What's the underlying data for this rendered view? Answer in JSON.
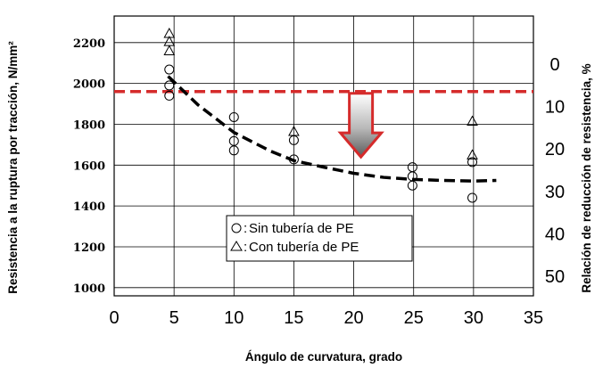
{
  "chart_data": {
    "type": "scatter",
    "title": "",
    "xlabel": "Ángulo de curvatura, grado",
    "ylabel": "Resistencia a la ruptura por tracción, N/mm²",
    "y2label": "Relación de reducción de resistencia, %",
    "xlim": [
      0,
      35
    ],
    "ylim": [
      960,
      2330
    ],
    "y2lim": [
      -11.3,
      54.6
    ],
    "grid": true,
    "x_ticks": [
      "0",
      "5",
      "10",
      "15",
      "20",
      "25",
      "30",
      "35"
    ],
    "y_ticks": [
      "1000",
      "1200",
      "1400",
      "1600",
      "1800",
      "2000",
      "2200"
    ],
    "y2_ticks": [
      "0",
      "10",
      "20",
      "30",
      "40",
      "50"
    ],
    "series": [
      {
        "name": "Sin tubería de PE",
        "marker": "circle",
        "x": [
          4.6,
          4.6,
          4.6,
          10,
          10,
          10,
          15,
          15,
          24.9,
          24.9,
          24.9,
          29.9,
          29.9
        ],
        "y": [
          2068,
          1990,
          1940,
          1835,
          1718,
          1672,
          1722,
          1628,
          1590,
          1545,
          1500,
          1615,
          1440
        ]
      },
      {
        "name": "Con tubería de PE",
        "marker": "triangle",
        "x": [
          4.6,
          4.6,
          4.6,
          15,
          29.9,
          29.9
        ],
        "y": [
          2245,
          2205,
          2160,
          1765,
          1815,
          1650
        ]
      }
    ],
    "trend_line": {
      "style": "dashed",
      "color": "#000000",
      "x": [
        4.5,
        7,
        10,
        13,
        15,
        17.5,
        20,
        22.5,
        25,
        27.5,
        30,
        31.9
      ],
      "y": [
        2035,
        1895,
        1760,
        1670,
        1622,
        1590,
        1560,
        1540,
        1530,
        1525,
        1522,
        1525
      ]
    },
    "reference_line": {
      "y": 1960,
      "style": "dashed",
      "color": "#d52b2b"
    },
    "arrow": {
      "x": 20.6,
      "y_from": 1960,
      "y_to": 1640,
      "direction": "down",
      "outline_color": "#d52b2b"
    },
    "legend": {
      "position": "bottom-center",
      "entries": [
        {
          "symbol": "○",
          "label": "Sin tubería de PE"
        },
        {
          "symbol": "△",
          "label": "Con tubería de PE"
        }
      ]
    }
  }
}
